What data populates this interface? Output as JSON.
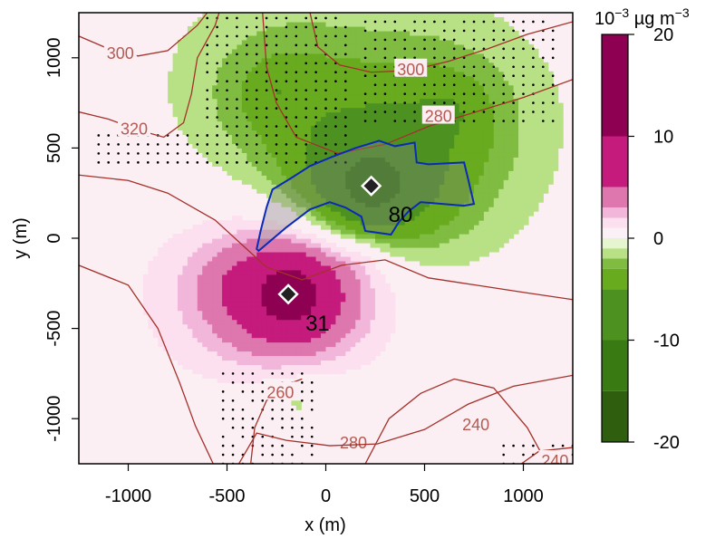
{
  "chart_data": {
    "type": "heatmap",
    "title": "",
    "xlabel": "x (m)",
    "ylabel": "y (m)",
    "xlim": [
      -1250,
      1250
    ],
    "ylim": [
      -1250,
      1250
    ],
    "x_ticks": [
      -1000,
      -500,
      0,
      500,
      1000
    ],
    "x_tick_labels": [
      "-1000",
      "-500",
      "0",
      "500",
      "1000"
    ],
    "y_ticks": [
      -1000,
      -500,
      0,
      500,
      1000
    ],
    "y_tick_labels": [
      "-1000",
      "-500",
      "0",
      "500",
      "1000"
    ],
    "colorbar": {
      "unit_base": "10",
      "unit_exp": "−3",
      "unit_rest": " µg m",
      "unit_rest_exp": "−3",
      "range": [
        -20,
        20
      ],
      "ticks": [
        20,
        10,
        0,
        -10,
        -20
      ],
      "tick_labels": [
        "20",
        "10",
        "0",
        "-10",
        "-20"
      ],
      "bins": [
        {
          "from": 10,
          "to": 20,
          "color": "#8e0152"
        },
        {
          "from": 5,
          "to": 10,
          "color": "#c51b7d"
        },
        {
          "from": 3,
          "to": 5,
          "color": "#de77ae"
        },
        {
          "from": 2,
          "to": 3,
          "color": "#f1b6da"
        },
        {
          "from": 1,
          "to": 2,
          "color": "#fde0ef"
        },
        {
          "from": 0,
          "to": 1,
          "color": "#fbf0f5"
        },
        {
          "from": -1,
          "to": 0,
          "color": "#e6f5d0"
        },
        {
          "from": -2,
          "to": -1,
          "color": "#b8e186"
        },
        {
          "from": -3,
          "to": -2,
          "color": "#7fbc41"
        },
        {
          "from": -5,
          "to": -3,
          "color": "#68ab1e"
        },
        {
          "from": -10,
          "to": -5,
          "color": "#4d9221"
        },
        {
          "from": -15,
          "to": -10,
          "color": "#3a7a13"
        },
        {
          "from": -20,
          "to": -15,
          "color": "#2f5e0f"
        }
      ]
    },
    "background_color": "#fbeff4",
    "field_components": [
      {
        "sign": "negative",
        "center": [
          230,
          290
        ],
        "peak": -17,
        "decay_m": 260
      },
      {
        "sign": "negative",
        "center": [
          -240,
          820
        ],
        "peak": -4,
        "decay_m": 380
      },
      {
        "sign": "negative",
        "center": [
          620,
          700
        ],
        "peak": -4,
        "decay_m": 320
      },
      {
        "sign": "negative",
        "center": [
          -150,
          -900
        ],
        "peak": -2.5,
        "decay_m": 250
      },
      {
        "sign": "positive",
        "center": [
          -180,
          -310
        ],
        "peak": 20,
        "decay_m": 200
      },
      {
        "sign": "positive",
        "center": [
          -500,
          -250
        ],
        "peak": 2.5,
        "decay_m": 360
      },
      {
        "sign": "positive",
        "center": [
          200,
          -100
        ],
        "peak": 3,
        "decay_m": 300
      }
    ],
    "contours": [
      {
        "level": 300,
        "label": "300",
        "label_at": [
          -1040,
          1030
        ],
        "points": [
          [
            -1250,
            1120
          ],
          [
            -1100,
            1050
          ],
          [
            -950,
            1010
          ],
          [
            -800,
            1040
          ],
          [
            -650,
            1180
          ],
          [
            -600,
            1250
          ]
        ]
      },
      {
        "level": 320,
        "label": "320",
        "label_at": [
          -970,
          610
        ],
        "points": [
          [
            -1250,
            700
          ],
          [
            -1100,
            660
          ],
          [
            -950,
            600
          ],
          [
            -820,
            560
          ],
          [
            -720,
            640
          ],
          [
            -680,
            800
          ],
          [
            -650,
            1000
          ],
          [
            -560,
            1180
          ],
          [
            -540,
            1250
          ]
        ]
      },
      {
        "level": 300,
        "label": "300",
        "label_at": [
          430,
          940
        ],
        "points": [
          [
            -80,
            1250
          ],
          [
            -40,
            1060
          ],
          [
            70,
            960
          ],
          [
            230,
            920
          ],
          [
            430,
            930
          ],
          [
            620,
            980
          ],
          [
            820,
            1050
          ],
          [
            1020,
            1130
          ],
          [
            1250,
            1200
          ]
        ]
      },
      {
        "level": 280,
        "label": "280",
        "label_at": [
          570,
          680
        ],
        "points": [
          [
            -320,
            1250
          ],
          [
            -300,
            950
          ],
          [
            -250,
            750
          ],
          [
            -150,
            560
          ],
          [
            60,
            470
          ],
          [
            300,
            520
          ],
          [
            520,
            620
          ],
          [
            760,
            700
          ],
          [
            1000,
            780
          ],
          [
            1250,
            880
          ]
        ]
      },
      {
        "level": 260,
        "label": "",
        "label_at": null,
        "points": [
          [
            -1250,
            350
          ],
          [
            -1000,
            320
          ],
          [
            -800,
            250
          ],
          [
            -560,
            100
          ],
          [
            -420,
            -40
          ],
          [
            -300,
            -160
          ],
          [
            -120,
            -230
          ],
          [
            80,
            -150
          ],
          [
            300,
            -120
          ],
          [
            520,
            -220
          ],
          [
            760,
            -260
          ],
          [
            1000,
            -300
          ],
          [
            1250,
            -340
          ]
        ]
      },
      {
        "level": 280,
        "label": "280",
        "label_at": [
          140,
          -1130
        ],
        "points": [
          [
            -1250,
            -150
          ],
          [
            -1000,
            -260
          ],
          [
            -850,
            -500
          ],
          [
            -740,
            -800
          ],
          [
            -660,
            -1040
          ],
          [
            -570,
            -1250
          ]
        ]
      },
      {
        "level": 280,
        "label": "",
        "label_at": null,
        "points": [
          [
            -440,
            -1250
          ],
          [
            -350,
            -1080
          ],
          [
            -200,
            -1120
          ],
          [
            20,
            -1150
          ],
          [
            260,
            -1140
          ],
          [
            500,
            -1060
          ],
          [
            720,
            -920
          ],
          [
            950,
            -820
          ],
          [
            1250,
            -760
          ]
        ]
      },
      {
        "level": 240,
        "label": "240",
        "label_at": [
          760,
          -1030
        ],
        "points": [
          [
            200,
            -1250
          ],
          [
            320,
            -1000
          ],
          [
            480,
            -860
          ],
          [
            650,
            -780
          ],
          [
            850,
            -830
          ],
          [
            1020,
            -1050
          ],
          [
            1120,
            -1250
          ]
        ]
      },
      {
        "level": 260,
        "label": "260",
        "label_at": [
          -230,
          -850
        ],
        "points": [
          [
            -380,
            -1250
          ],
          [
            -360,
            -1050
          ],
          [
            -300,
            -900
          ],
          [
            -220,
            -820
          ],
          [
            -120,
            -780
          ]
        ]
      },
      {
        "level": 240,
        "label": "240",
        "label_at": [
          1160,
          -1230
        ],
        "points": [
          [
            990,
            -1250
          ],
          [
            1080,
            -1180
          ],
          [
            1250,
            -1160
          ]
        ]
      }
    ],
    "blue_outline": [
      [
        -350,
        -60
      ],
      [
        -330,
        40
      ],
      [
        -300,
        170
      ],
      [
        -270,
        270
      ],
      [
        -180,
        330
      ],
      [
        -80,
        400
      ],
      [
        30,
        450
      ],
      [
        150,
        500
      ],
      [
        270,
        540
      ],
      [
        350,
        510
      ],
      [
        450,
        530
      ],
      [
        460,
        420
      ],
      [
        520,
        410
      ],
      [
        700,
        420
      ],
      [
        720,
        330
      ],
      [
        750,
        190
      ],
      [
        700,
        180
      ],
      [
        480,
        200
      ],
      [
        420,
        150
      ],
      [
        370,
        90
      ],
      [
        330,
        20
      ],
      [
        200,
        40
      ],
      [
        180,
        120
      ],
      [
        100,
        170
      ],
      [
        20,
        200
      ],
      [
        -80,
        160
      ],
      [
        -200,
        60
      ],
      [
        -340,
        -70
      ]
    ],
    "stipple_regions": [
      {
        "x": [
          -600,
          100
        ],
        "y": [
          420,
          1250
        ]
      },
      {
        "x": [
          -1150,
          -450
        ],
        "y": [
          420,
          650
        ]
      },
      {
        "x": [
          200,
          1150
        ],
        "y": [
          650,
          1200
        ]
      },
      {
        "x": [
          -520,
          -40
        ],
        "y": [
          -1250,
          -750
        ]
      },
      {
        "x": [
          900,
          1250
        ],
        "y": [
          -1250,
          -1130
        ]
      }
    ],
    "markers": [
      {
        "x": 230,
        "y": 290,
        "label": "80"
      },
      {
        "x": -190,
        "y": -310,
        "label": "31"
      }
    ]
  }
}
